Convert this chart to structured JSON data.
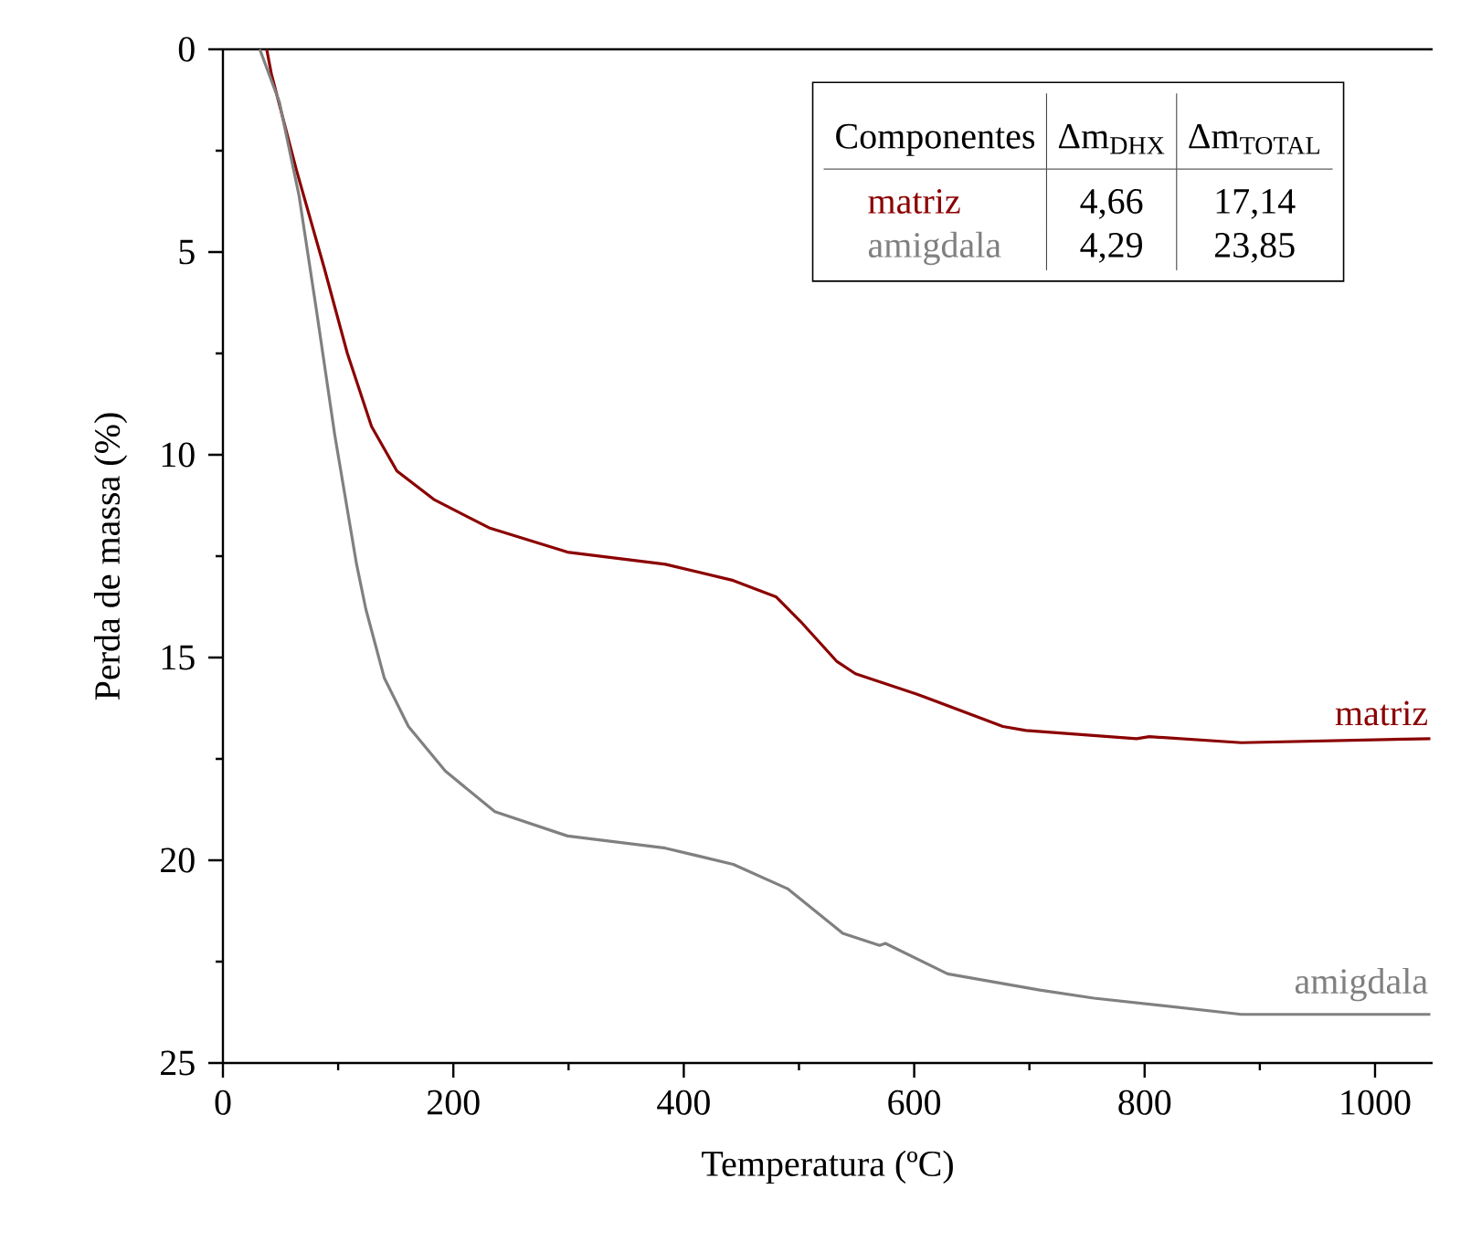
{
  "chart_data": {
    "type": "line",
    "xlabel": "Temperatura (ºC)",
    "ylabel": "Perda de massa (%)",
    "xlim": [
      0,
      1050
    ],
    "xticks": [
      0,
      200,
      400,
      600,
      800,
      1000
    ],
    "ylim": [
      25,
      0
    ],
    "yticks": [
      0,
      5,
      10,
      15,
      20,
      25
    ],
    "series": [
      {
        "name": "matriz",
        "color": "#8b0000",
        "x": [
          38,
          42,
          64,
          88,
          108,
          129,
          151,
          183,
          231,
          299,
          384,
          443,
          480,
          501,
          533,
          549,
          602,
          677,
          697,
          793,
          804,
          884,
          1048
        ],
        "values": [
          0,
          0.6,
          3.0,
          5.4,
          7.5,
          9.3,
          10.4,
          11.1,
          11.8,
          12.4,
          12.7,
          13.1,
          13.5,
          14.1,
          15.1,
          15.4,
          15.9,
          16.7,
          16.8,
          17.0,
          16.95,
          17.1,
          17.0
        ]
      },
      {
        "name": "amigdala",
        "color": "#808080",
        "x": [
          32,
          49,
          66,
          81,
          97,
          116,
          124,
          140,
          161,
          193,
          236,
          299,
          384,
          443,
          490,
          538,
          570,
          575,
          629,
          709,
          756,
          884,
          1048
        ],
        "values": [
          0,
          1.3,
          3.6,
          6.4,
          9.5,
          12.7,
          13.8,
          15.5,
          16.7,
          17.8,
          18.8,
          19.4,
          19.7,
          20.1,
          20.7,
          21.8,
          22.1,
          22.05,
          22.8,
          23.2,
          23.4,
          23.8,
          23.8
        ]
      }
    ],
    "annotations": [
      "Componentes",
      "Δm$_{DHX}$",
      "Δm$_{TOTAL}$",
      "4,66",
      "17,14",
      "4,29",
      "23,85"
    ]
  }
}
